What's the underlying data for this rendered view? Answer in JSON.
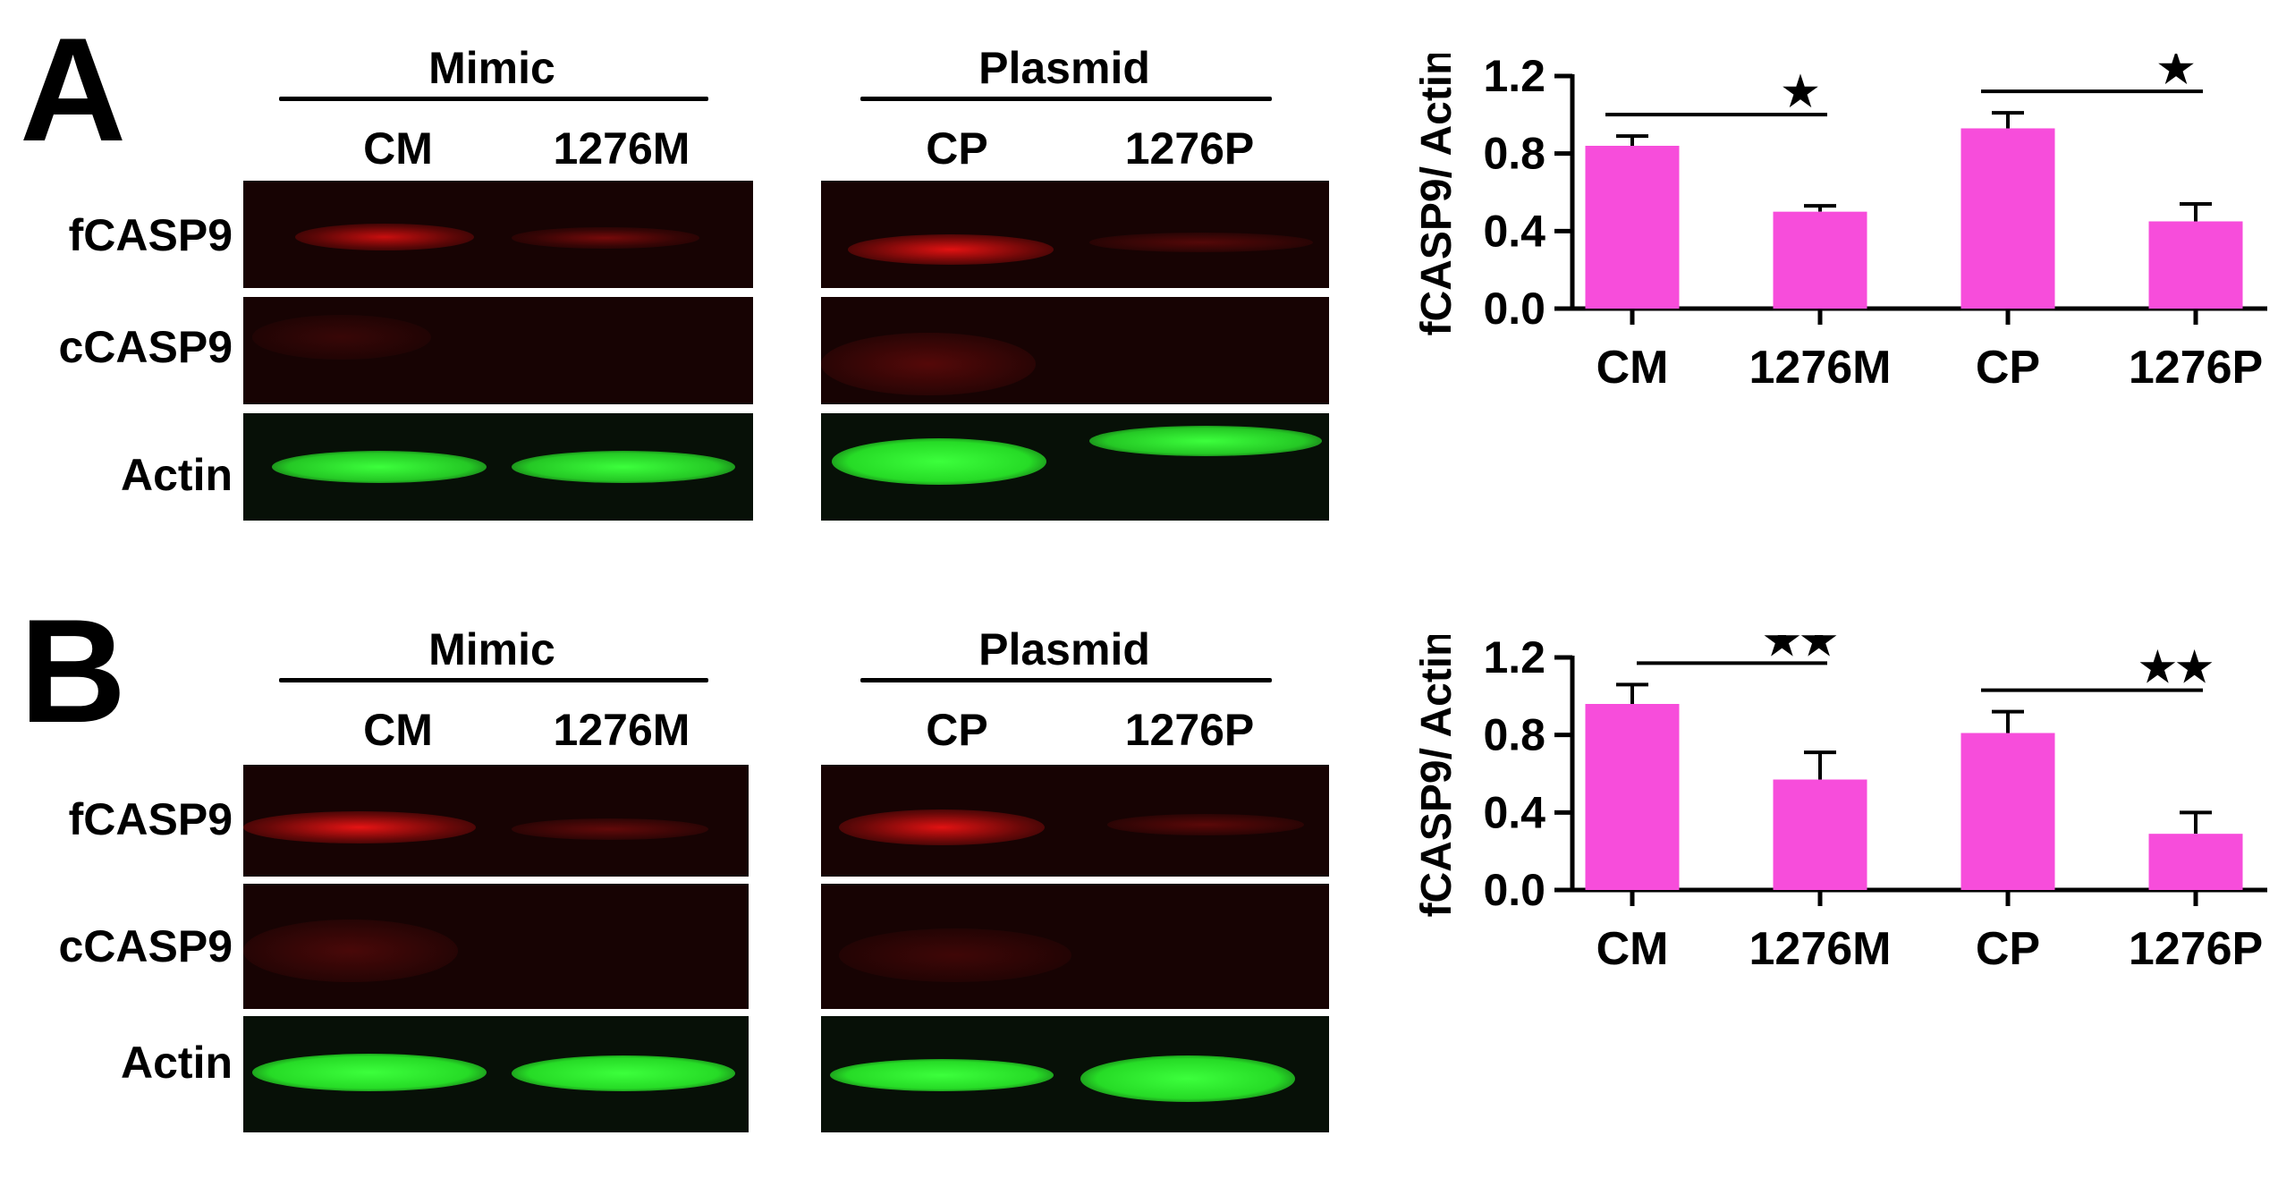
{
  "panels": [
    {
      "letter": "A",
      "groups": [
        {
          "title": "Mimic",
          "lanes": [
            "CM",
            "1276M"
          ]
        },
        {
          "title": "Plasmid",
          "lanes": [
            "CP",
            "1276P"
          ]
        }
      ],
      "rows": [
        "fCASP9",
        "cCASP9",
        "Actin"
      ]
    },
    {
      "letter": "B",
      "groups": [
        {
          "title": "Mimic",
          "lanes": [
            "CM",
            "1276M"
          ]
        },
        {
          "title": "Plasmid",
          "lanes": [
            "CP",
            "1276P"
          ]
        }
      ],
      "rows": [
        "fCASP9",
        "cCASP9",
        "Actin"
      ]
    }
  ],
  "colors": {
    "bar": "#f74ddb",
    "band_red": "#e01010",
    "band_green": "#33ff33",
    "blot_background": "#170303"
  },
  "chart_data": [
    {
      "type": "bar",
      "categories": [
        "CM",
        "1276M",
        "CP",
        "1276P"
      ],
      "values": [
        0.84,
        0.5,
        0.93,
        0.45
      ],
      "errors": [
        0.05,
        0.03,
        0.08,
        0.09
      ],
      "ylabel": "fCASP9/ Actin",
      "ylim": [
        0,
        1.2
      ],
      "yticks": [
        "0.0",
        "0.4",
        "0.8",
        "1.2"
      ],
      "significance": [
        {
          "from": "CM",
          "to": "1276M",
          "label": "★"
        },
        {
          "from": "CP",
          "to": "1276P",
          "label": "★"
        }
      ]
    },
    {
      "type": "bar",
      "categories": [
        "CM",
        "1276M",
        "CP",
        "1276P"
      ],
      "values": [
        0.96,
        0.57,
        0.81,
        0.29
      ],
      "errors": [
        0.1,
        0.14,
        0.11,
        0.11
      ],
      "ylabel": "fCASP9/ Actin",
      "ylim": [
        0,
        1.2
      ],
      "yticks": [
        "0.0",
        "0.4",
        "0.8",
        "1.2"
      ],
      "significance": [
        {
          "from": "CM",
          "to": "1276M",
          "label": "★★"
        },
        {
          "from": "CP",
          "to": "1276P",
          "label": "★★"
        }
      ]
    }
  ]
}
